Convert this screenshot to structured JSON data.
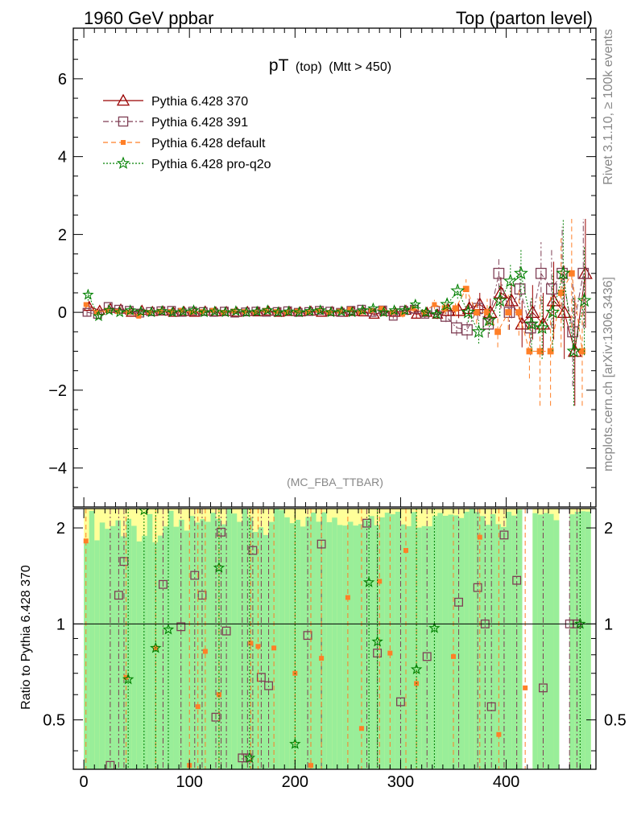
{
  "header": {
    "left": "1960 GeV ppbar",
    "right": "Top (parton level)"
  },
  "side_labels": {
    "rivet": "Rivet 3.1.10, ≥ 100k events",
    "mcplots": "mcplots.cern.ch [arXiv:1306.3436]"
  },
  "plot_title": {
    "main": "pT",
    "sub": "(top)",
    "cut": "(Mtt > 450)"
  },
  "analysis_tag": "(MC_FBA_TTBAR)",
  "ratio_ylabel": "Ratio to Pythia 6.428 370",
  "colors": {
    "p370": "#990000",
    "p391": "#7f3f55",
    "pdefault": "#ff7f27",
    "pproq2o": "#008000",
    "band_green": "#99ee99",
    "band_yellow": "#ffff99"
  },
  "chart_data": [
    {
      "type": "scatter",
      "panel": "main",
      "xlim": [
        -10,
        485
      ],
      "ylim": [
        -5,
        7.3
      ],
      "x_ticks": [
        0,
        100,
        200,
        300,
        400
      ],
      "y_ticks": [
        -4,
        -2,
        0,
        2,
        4,
        6
      ],
      "y_tick_labels": [
        "−4",
        "−2",
        "0",
        "2",
        "4",
        "6"
      ],
      "x_tick_labels": [
        "0",
        "100",
        "200",
        "300",
        "400"
      ],
      "legend_position": "top-left",
      "series": [
        {
          "name": "Pythia 6.428 370",
          "marker": "triangle",
          "line": "solid",
          "color": "#990000",
          "x": [
            5,
            15,
            25,
            35,
            45,
            55,
            65,
            75,
            85,
            95,
            105,
            115,
            125,
            135,
            145,
            155,
            165,
            175,
            185,
            195,
            205,
            215,
            225,
            235,
            245,
            255,
            265,
            275,
            285,
            295,
            305,
            315,
            325,
            335,
            345,
            355,
            365,
            375,
            385,
            395,
            405,
            415,
            425,
            435,
            445,
            455,
            465,
            475
          ],
          "y": [
            0.15,
            0.05,
            0.1,
            0.08,
            0.0,
            0.05,
            0.02,
            0.03,
            0.0,
            0.02,
            0.0,
            0.03,
            0.01,
            0.02,
            0.0,
            0.02,
            0.01,
            0.03,
            0.0,
            0.02,
            0.01,
            0.03,
            0.0,
            0.02,
            0.0,
            0.02,
            0.01,
            -0.05,
            0.02,
            0.0,
            0.05,
            -0.05,
            0.0,
            -0.05,
            0.05,
            0.05,
            0.1,
            0.2,
            0.0,
            0.5,
            0.3,
            -0.3,
            0.0,
            -0.3,
            0.3,
            0.0,
            -1.0,
            1.0
          ],
          "err": [
            0.1,
            0.05,
            0.05,
            0.05,
            0.05,
            0.05,
            0.05,
            0.05,
            0.05,
            0.05,
            0.05,
            0.05,
            0.05,
            0.05,
            0.05,
            0.05,
            0.05,
            0.05,
            0.05,
            0.05,
            0.05,
            0.05,
            0.05,
            0.05,
            0.05,
            0.05,
            0.06,
            0.06,
            0.06,
            0.07,
            0.08,
            0.1,
            0.1,
            0.12,
            0.15,
            0.2,
            0.25,
            0.3,
            0.35,
            0.4,
            0.45,
            0.6,
            0.7,
            0.8,
            1.0,
            1.2,
            1.4,
            1.4
          ]
        },
        {
          "name": "Pythia 6.428 391",
          "marker": "open-square",
          "line": "dash-dot",
          "color": "#7f3f55",
          "x": [
            3,
            13,
            23,
            33,
            43,
            53,
            63,
            73,
            83,
            93,
            103,
            113,
            123,
            133,
            143,
            153,
            163,
            173,
            183,
            193,
            203,
            213,
            223,
            233,
            243,
            253,
            263,
            273,
            283,
            293,
            303,
            313,
            323,
            333,
            343,
            353,
            363,
            373,
            383,
            393,
            403,
            413,
            423,
            433,
            443,
            453,
            463,
            473
          ],
          "y": [
            0.0,
            -0.05,
            0.15,
            0.08,
            0.05,
            -0.02,
            0.02,
            0.04,
            0.05,
            0.0,
            0.03,
            0.02,
            0.0,
            0.03,
            -0.02,
            0.01,
            0.03,
            0.0,
            0.02,
            0.04,
            0.0,
            0.02,
            0.05,
            0.03,
            0.0,
            0.05,
            0.08,
            0.0,
            0.06,
            -0.1,
            0.05,
            0.08,
            -0.05,
            0.05,
            -0.1,
            -0.4,
            -0.45,
            0.1,
            -0.3,
            1.0,
            0.0,
            0.6,
            -0.4,
            1.0,
            0.6,
            1.0,
            -0.5,
            1.0
          ],
          "err": [
            0.1,
            0.05,
            0.05,
            0.05,
            0.05,
            0.05,
            0.05,
            0.05,
            0.05,
            0.05,
            0.05,
            0.05,
            0.05,
            0.05,
            0.05,
            0.05,
            0.05,
            0.05,
            0.05,
            0.05,
            0.05,
            0.05,
            0.05,
            0.05,
            0.05,
            0.05,
            0.06,
            0.06,
            0.06,
            0.07,
            0.08,
            0.1,
            0.1,
            0.12,
            0.15,
            0.2,
            0.25,
            0.3,
            0.35,
            0.4,
            0.45,
            0.6,
            0.7,
            0.8,
            1.0,
            1.2,
            1.4,
            1.4
          ]
        },
        {
          "name": "Pythia 6.428 default",
          "marker": "filled-square",
          "line": "dashed",
          "color": "#ff7f27",
          "x": [
            2,
            12,
            22,
            32,
            42,
            52,
            62,
            72,
            82,
            92,
            102,
            112,
            122,
            132,
            142,
            152,
            162,
            172,
            182,
            192,
            202,
            212,
            222,
            232,
            242,
            252,
            262,
            272,
            282,
            292,
            302,
            312,
            322,
            332,
            342,
            352,
            362,
            372,
            382,
            392,
            402,
            412,
            422,
            432,
            442,
            452,
            462,
            472
          ],
          "y": [
            0.2,
            0.0,
            0.05,
            0.02,
            0.0,
            -0.1,
            0.0,
            0.03,
            0.02,
            0.05,
            0.0,
            0.02,
            0.05,
            0.0,
            0.03,
            0.02,
            0.0,
            0.05,
            0.02,
            0.0,
            0.03,
            0.0,
            0.05,
            0.0,
            0.03,
            0.08,
            0.0,
            0.05,
            0.1,
            0.0,
            -0.05,
            0.1,
            0.0,
            0.2,
            0.1,
            0.1,
            0.6,
            0.0,
            0.0,
            -0.5,
            0.0,
            0.0,
            -1.0,
            -1.0,
            -1.0,
            0.5,
            1.0,
            -1.0
          ],
          "err": [
            0.1,
            0.05,
            0.05,
            0.05,
            0.05,
            0.05,
            0.05,
            0.05,
            0.05,
            0.05,
            0.05,
            0.05,
            0.05,
            0.05,
            0.05,
            0.05,
            0.05,
            0.05,
            0.05,
            0.05,
            0.05,
            0.05,
            0.05,
            0.05,
            0.05,
            0.05,
            0.06,
            0.06,
            0.06,
            0.07,
            0.08,
            0.1,
            0.1,
            0.12,
            0.15,
            0.2,
            0.25,
            0.3,
            0.35,
            0.4,
            0.45,
            0.6,
            0.7,
            1.4,
            1.4,
            1.4,
            1.4,
            1.4
          ]
        },
        {
          "name": "Pythia 6.428 pro-q2o",
          "marker": "star",
          "line": "dotted",
          "color": "#008000",
          "x": [
            4,
            14,
            24,
            34,
            44,
            54,
            64,
            74,
            84,
            94,
            104,
            114,
            124,
            134,
            144,
            154,
            164,
            174,
            184,
            194,
            204,
            214,
            224,
            234,
            244,
            254,
            264,
            274,
            284,
            294,
            304,
            314,
            324,
            334,
            344,
            354,
            364,
            374,
            384,
            394,
            404,
            414,
            424,
            434,
            444,
            454,
            464,
            474
          ],
          "y": [
            0.45,
            -0.1,
            0.05,
            0.0,
            0.05,
            0.02,
            0.0,
            0.03,
            0.0,
            0.02,
            0.05,
            0.0,
            0.02,
            0.0,
            0.03,
            0.0,
            0.02,
            0.05,
            0.0,
            0.02,
            0.0,
            0.03,
            0.05,
            0.0,
            0.02,
            0.0,
            0.05,
            0.1,
            0.0,
            0.05,
            0.05,
            0.2,
            0.0,
            -0.05,
            0.2,
            0.55,
            0.0,
            -0.5,
            -0.2,
            0.3,
            0.8,
            1.0,
            -0.3,
            -0.4,
            0.0,
            1.0,
            -1.0,
            0.3
          ],
          "err": [
            0.15,
            0.05,
            0.05,
            0.05,
            0.05,
            0.05,
            0.05,
            0.05,
            0.05,
            0.05,
            0.05,
            0.05,
            0.05,
            0.05,
            0.05,
            0.05,
            0.05,
            0.05,
            0.05,
            0.05,
            0.05,
            0.05,
            0.05,
            0.05,
            0.05,
            0.05,
            0.06,
            0.06,
            0.06,
            0.07,
            0.08,
            0.1,
            0.1,
            0.12,
            0.15,
            0.2,
            0.25,
            0.3,
            0.35,
            0.4,
            0.45,
            0.6,
            0.7,
            0.8,
            1.0,
            1.4,
            1.4,
            1.4
          ]
        }
      ]
    },
    {
      "type": "scatter",
      "panel": "ratio",
      "xlim": [
        -10,
        485
      ],
      "ylim": [
        0.35,
        2.3
      ],
      "y_ticks": [
        0.5,
        1,
        2
      ],
      "y_tick_labels": [
        "0.5",
        "1",
        "2"
      ],
      "reference_line": 1,
      "series": [
        {
          "name": "Pythia 6.428 391",
          "marker": "open-square",
          "color": "#7f3f55",
          "x": [
            25,
            33,
            38,
            75,
            92,
            105,
            112,
            125,
            130,
            135,
            150,
            155,
            160,
            168,
            175,
            212,
            225,
            268,
            278,
            300,
            325,
            355,
            373,
            380,
            386,
            398,
            410,
            435,
            460,
            467
          ],
          "y": [
            0.36,
            1.23,
            1.57,
            1.33,
            0.98,
            1.42,
            1.23,
            0.51,
            1.94,
            0.95,
            0.38,
            0.38,
            1.7,
            0.68,
            0.64,
            0.92,
            1.78,
            2.07,
            0.81,
            0.57,
            0.79,
            1.17,
            1.3,
            1.0,
            0.55,
            1.9,
            1.37,
            0.63,
            1.0,
            1.0
          ]
        },
        {
          "name": "Pythia 6.428 default",
          "marker": "filled-square",
          "color": "#ff7f27",
          "x": [
            2,
            40,
            68,
            100,
            108,
            115,
            128,
            158,
            165,
            180,
            200,
            215,
            225,
            250,
            263,
            280,
            290,
            305,
            315,
            350,
            375,
            393,
            418
          ],
          "y": [
            1.82,
            0.68,
            0.84,
            0.36,
            0.55,
            0.82,
            0.6,
            0.87,
            0.85,
            0.84,
            0.7,
            0.36,
            0.78,
            1.21,
            0.47,
            1.36,
            0.81,
            1.7,
            0.65,
            0.79,
            1.87,
            0.45,
            0.63
          ]
        },
        {
          "name": "Pythia 6.428 pro-q2o",
          "marker": "star",
          "color": "#008000",
          "x": [
            42,
            57,
            68,
            80,
            128,
            157,
            200,
            270,
            278,
            315,
            332,
            470
          ],
          "y": [
            0.67,
            2.27,
            0.84,
            0.96,
            1.5,
            0.38,
            0.42,
            1.35,
            0.88,
            0.72,
            0.97,
            1.0
          ]
        }
      ]
    }
  ]
}
